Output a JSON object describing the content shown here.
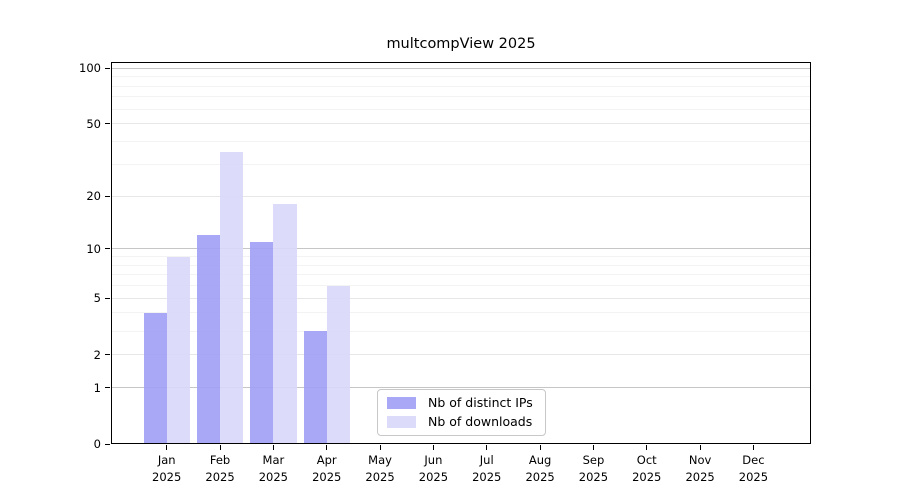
{
  "chart_data": {
    "type": "bar",
    "title": "multcompView 2025",
    "categories": [
      "Jan",
      "Feb",
      "Mar",
      "Apr",
      "May",
      "Jun",
      "Jul",
      "Aug",
      "Sep",
      "Oct",
      "Nov",
      "Dec"
    ],
    "category_year": "2025",
    "series": [
      {
        "name": "Nb of distinct IPs",
        "color": "#9e9ef5",
        "values": [
          4,
          12,
          11,
          3,
          null,
          null,
          null,
          null,
          null,
          null,
          null,
          null
        ]
      },
      {
        "name": "Nb of downloads",
        "color": "#d8d8f9",
        "values": [
          9,
          35,
          18,
          6,
          null,
          null,
          null,
          null,
          null,
          null,
          null,
          null
        ]
      }
    ],
    "y_axis": {
      "scale": "log10(value+1)",
      "tick_labels": [
        0,
        1,
        2,
        5,
        10,
        20,
        50,
        100
      ],
      "major_gridlines": [
        1,
        10,
        100
      ],
      "soft_gridlines": [
        2,
        5,
        20,
        50
      ],
      "minor_gridlines": [
        3,
        4,
        6,
        7,
        8,
        9,
        30,
        40,
        60,
        70,
        80,
        90
      ],
      "ylim": [
        0,
        109
      ],
      "grid_major_color": "#c6c6c6",
      "grid_soft_color": "#e7e7e7",
      "grid_minor_color": "#f3f3f3"
    },
    "xlabel": "",
    "ylabel": "",
    "legend": {
      "position": "lower-center",
      "entries": [
        "Nb of distinct IPs",
        "Nb of downloads"
      ]
    },
    "axis_color": "#000000",
    "background_color": "#ffffff"
  }
}
